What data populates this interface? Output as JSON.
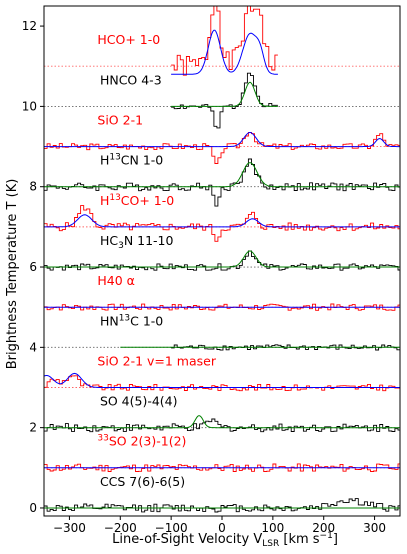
{
  "chart_data": {
    "type": "line",
    "xlabel_main": "Line-of-Sight Velocity V",
    "xlabel_sub": "LSR",
    "xlabel_unit_pre": "[km s",
    "xlabel_unit_sup": "−1",
    "xlabel_unit_post": "]",
    "ylabel_main": "Brightness Temperature T (K)",
    "xlim": [
      -350,
      350
    ],
    "ylim": [
      -0.2,
      12.5
    ],
    "xticks": [
      -300,
      -200,
      -100,
      0,
      100,
      200,
      300
    ],
    "xtick_labels": [
      "−300",
      "−200",
      "−100",
      "0",
      "100",
      "200",
      "300"
    ],
    "yticks": [
      0,
      2,
      4,
      6,
      8,
      10,
      12
    ],
    "ytick_labels": [
      "0",
      "2",
      "4",
      "6",
      "8",
      "10",
      "12"
    ],
    "colors": {
      "red": "#ff0000",
      "black": "#000000",
      "blue": "#0000ff",
      "green": "#008000"
    },
    "lines": [
      {
        "label_parts": [
          "HCO+ 1-0"
        ],
        "color": "red",
        "baseline": 11.0,
        "label_y": 11.55,
        "label_x": -245,
        "xrange": [
          -100,
          110
        ],
        "noise": 0.3,
        "seed": 1,
        "features": [
          [
            -15,
            1.2,
            10
          ],
          [
            -10,
            0.9,
            6
          ],
          [
            55,
            1.3,
            15
          ],
          [
            75,
            0.9,
            8
          ]
        ],
        "fit": [
          [
            -15,
            1.1,
            12
          ],
          [
            55,
            1.0,
            14
          ],
          [
            75,
            0.4,
            8
          ]
        ],
        "fit_color": "blue",
        "fit_base": 10.8,
        "fit_range": [
          -100,
          110
        ]
      },
      {
        "label_parts": [
          "HNCO 4-3"
        ],
        "color": "black",
        "baseline": 10.0,
        "label_y": 10.55,
        "label_x": -240,
        "xrange": [
          -100,
          110
        ],
        "noise": 0.08,
        "seed": 2,
        "features": [
          [
            -10,
            -0.6,
            6
          ],
          [
            55,
            0.9,
            10
          ]
        ],
        "fit": [
          [
            55,
            0.6,
            10
          ]
        ],
        "fit_color": "green",
        "fit_base": 10.0,
        "fit_range": [
          -100,
          110
        ]
      },
      {
        "label_parts": [
          "SiO 2-1"
        ],
        "color": "red",
        "baseline": 9.0,
        "label_y": 9.55,
        "label_x": -245,
        "xrange": [
          -350,
          350
        ],
        "noise": 0.08,
        "seed": 3,
        "features": [
          [
            -10,
            -0.5,
            6
          ],
          [
            55,
            0.4,
            10
          ],
          [
            310,
            0.3,
            8
          ]
        ],
        "fit": [
          [
            55,
            0.35,
            12
          ],
          [
            310,
            0.2,
            8
          ]
        ],
        "fit_color": "blue",
        "fit_base": 9.0,
        "fit_range": [
          -350,
          350
        ]
      },
      {
        "label_parts": [
          "H",
          "13",
          "CN 1-0"
        ],
        "color": "black",
        "baseline": 8.0,
        "label_y": 8.55,
        "label_x": -240,
        "xrange": [
          -350,
          350
        ],
        "noise": 0.1,
        "seed": 4,
        "features": [
          [
            -10,
            -0.4,
            6
          ],
          [
            55,
            0.6,
            12
          ]
        ],
        "fit": [
          [
            55,
            0.6,
            14
          ]
        ],
        "fit_color": "green",
        "fit_base": 8.0,
        "fit_range": [
          -350,
          350
        ]
      },
      {
        "label_parts": [
          "H",
          "13",
          "CO+ 1-0"
        ],
        "color": "red",
        "baseline": 7.0,
        "label_y": 7.55,
        "label_x": -240,
        "xrange": [
          -350,
          350
        ],
        "noise": 0.1,
        "seed": 5,
        "features": [
          [
            -270,
            0.5,
            12
          ],
          [
            -10,
            -0.3,
            6
          ],
          [
            60,
            0.3,
            10
          ]
        ],
        "fit": [
          [
            -270,
            0.3,
            14
          ],
          [
            60,
            0.2,
            12
          ]
        ],
        "fit_color": "blue",
        "fit_base": 7.0,
        "fit_range": [
          -350,
          350
        ]
      },
      {
        "label_parts": [
          "HC",
          "3",
          "N 11-10"
        ],
        "color": "black",
        "baseline": 6.0,
        "label_y": 6.55,
        "label_x": -240,
        "xrange": [
          -350,
          350
        ],
        "noise": 0.08,
        "seed": 6,
        "features": [
          [
            55,
            0.4,
            10
          ]
        ],
        "fit": [
          [
            55,
            0.4,
            12
          ]
        ],
        "fit_color": "green",
        "fit_base": 6.0,
        "fit_range": [
          -350,
          350
        ]
      },
      {
        "label_parts": [
          "H40 α"
        ],
        "color": "red",
        "baseline": 5.0,
        "label_y": 5.55,
        "label_x": -245,
        "xrange": [
          -350,
          350
        ],
        "noise": 0.08,
        "seed": 7,
        "features": [],
        "fit": [],
        "fit_color": "blue",
        "fit_base": 5.0,
        "fit_range": [
          -350,
          350
        ]
      },
      {
        "label_parts": [
          "HN",
          "13",
          "C 1-0"
        ],
        "color": "black",
        "baseline": 4.0,
        "label_y": 4.55,
        "label_x": -240,
        "xrange": [
          -100,
          350
        ],
        "noise": 0.07,
        "seed": 8,
        "features": [],
        "fit": [],
        "fit_color": "green",
        "fit_base": 4.0,
        "fit_range": [
          -200,
          350
        ]
      },
      {
        "label_parts": [
          "SiO 2-1 v=1 maser"
        ],
        "color": "red",
        "baseline": 3.0,
        "label_y": 3.55,
        "label_x": -245,
        "xrange": [
          -350,
          350
        ],
        "noise": 0.08,
        "seed": 9,
        "features": [
          [
            -330,
            0.2,
            10
          ],
          [
            -295,
            0.3,
            12
          ]
        ],
        "fit": [
          [
            -345,
            0.3,
            14
          ],
          [
            -290,
            0.35,
            14
          ]
        ],
        "fit_color": "blue",
        "fit_base": 3.0,
        "fit_range": [
          -350,
          350
        ]
      },
      {
        "label_parts": [
          "SO 4(5)-4(4)"
        ],
        "color": "black",
        "baseline": 2.0,
        "label_y": 2.55,
        "label_x": -240,
        "xrange": [
          -350,
          350
        ],
        "noise": 0.1,
        "seed": 10,
        "features": [
          [
            -20,
            0.2,
            8
          ]
        ],
        "fit": [
          [
            -45,
            0.3,
            8
          ]
        ],
        "fit_color": "green",
        "fit_base": 2.0,
        "fit_range": [
          -350,
          350
        ]
      },
      {
        "label_parts": [
          "",
          "33",
          "SO 2(3)-1(2)"
        ],
        "color": "red",
        "baseline": 1.0,
        "label_y": 1.55,
        "label_x": -245,
        "xrange": [
          -350,
          350
        ],
        "noise": 0.1,
        "seed": 11,
        "features": [],
        "fit": [],
        "fit_color": "blue",
        "fit_base": 1.0,
        "fit_range": [
          -350,
          350
        ]
      },
      {
        "label_parts": [
          "CCS 7(6)-6(5)"
        ],
        "color": "black",
        "baseline": 0.0,
        "label_y": 0.55,
        "label_x": -240,
        "xrange": [
          -350,
          350
        ],
        "noise": 0.1,
        "seed": 12,
        "features": [
          [
            250,
            0.2,
            30
          ]
        ],
        "fit": [],
        "fit_color": "green",
        "fit_base": 0.0,
        "fit_range": [
          -350,
          350
        ]
      }
    ]
  }
}
